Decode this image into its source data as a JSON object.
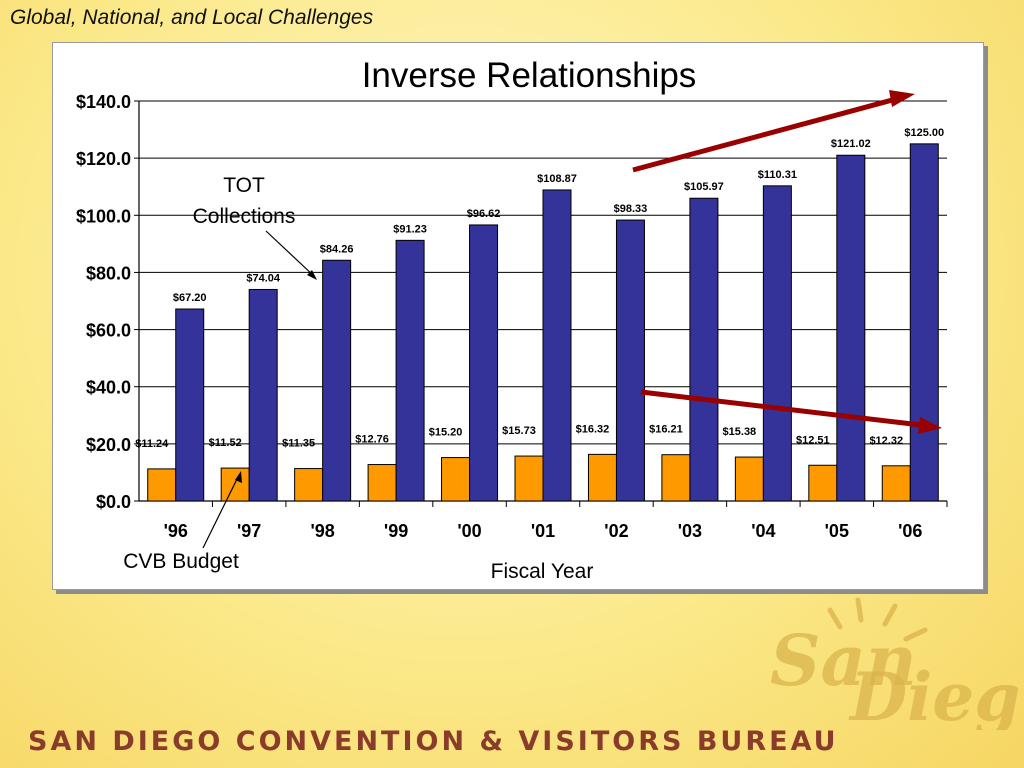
{
  "slide": {
    "title": "Global, National, and Local Challenges",
    "footer": "SAN DIEGO CONVENTION & VISITORS BUREAU",
    "logo_text": "San Diego"
  },
  "colors": {
    "tot": "#333399",
    "cvb": "#ff9900",
    "arrow": "#990000",
    "axis": "#000000",
    "grid": "#000000"
  },
  "chart_data": {
    "type": "bar",
    "title": "Inverse Relationships",
    "xlabel": "Fiscal Year",
    "ylabel": "",
    "categories": [
      "'96",
      "'97",
      "'98",
      "'99",
      "'00",
      "'01",
      "'02",
      "'03",
      "'04",
      "'05",
      "'06"
    ],
    "ylim": [
      0,
      140
    ],
    "yticks": [
      "$0.0",
      "$20.0",
      "$40.0",
      "$60.0",
      "$80.0",
      "$100.0",
      "$120.0",
      "$140.0"
    ],
    "grid": true,
    "series": [
      {
        "name": "CVB Budget",
        "color": "#ff9900",
        "values": [
          11.24,
          11.52,
          11.35,
          12.76,
          15.2,
          15.73,
          16.32,
          16.21,
          15.38,
          12.51,
          12.32
        ],
        "labels": [
          "$11.24",
          "$11.52",
          "$11.35",
          "$12.76",
          "$15.20",
          "$15.73",
          "$16.32",
          "$16.21",
          "$15.38",
          "$12.51",
          "$12.32"
        ]
      },
      {
        "name": "TOT Collections",
        "color": "#333399",
        "values": [
          67.2,
          74.04,
          84.26,
          91.23,
          96.62,
          108.87,
          98.33,
          105.97,
          110.31,
          121.02,
          125.0
        ],
        "labels": [
          "$67.20",
          "$74.04",
          "$84.26",
          "$91.23",
          "$96.62",
          "$108.87",
          "$98.33",
          "$105.97",
          "$110.31",
          "$121.02",
          "$125.00"
        ]
      }
    ],
    "annotations": [
      {
        "text": "TOT Collections",
        "line1": "TOT",
        "line2": "Collections"
      },
      {
        "text": "CVB Budget"
      }
    ],
    "trend_arrows": [
      "up",
      "down"
    ]
  }
}
